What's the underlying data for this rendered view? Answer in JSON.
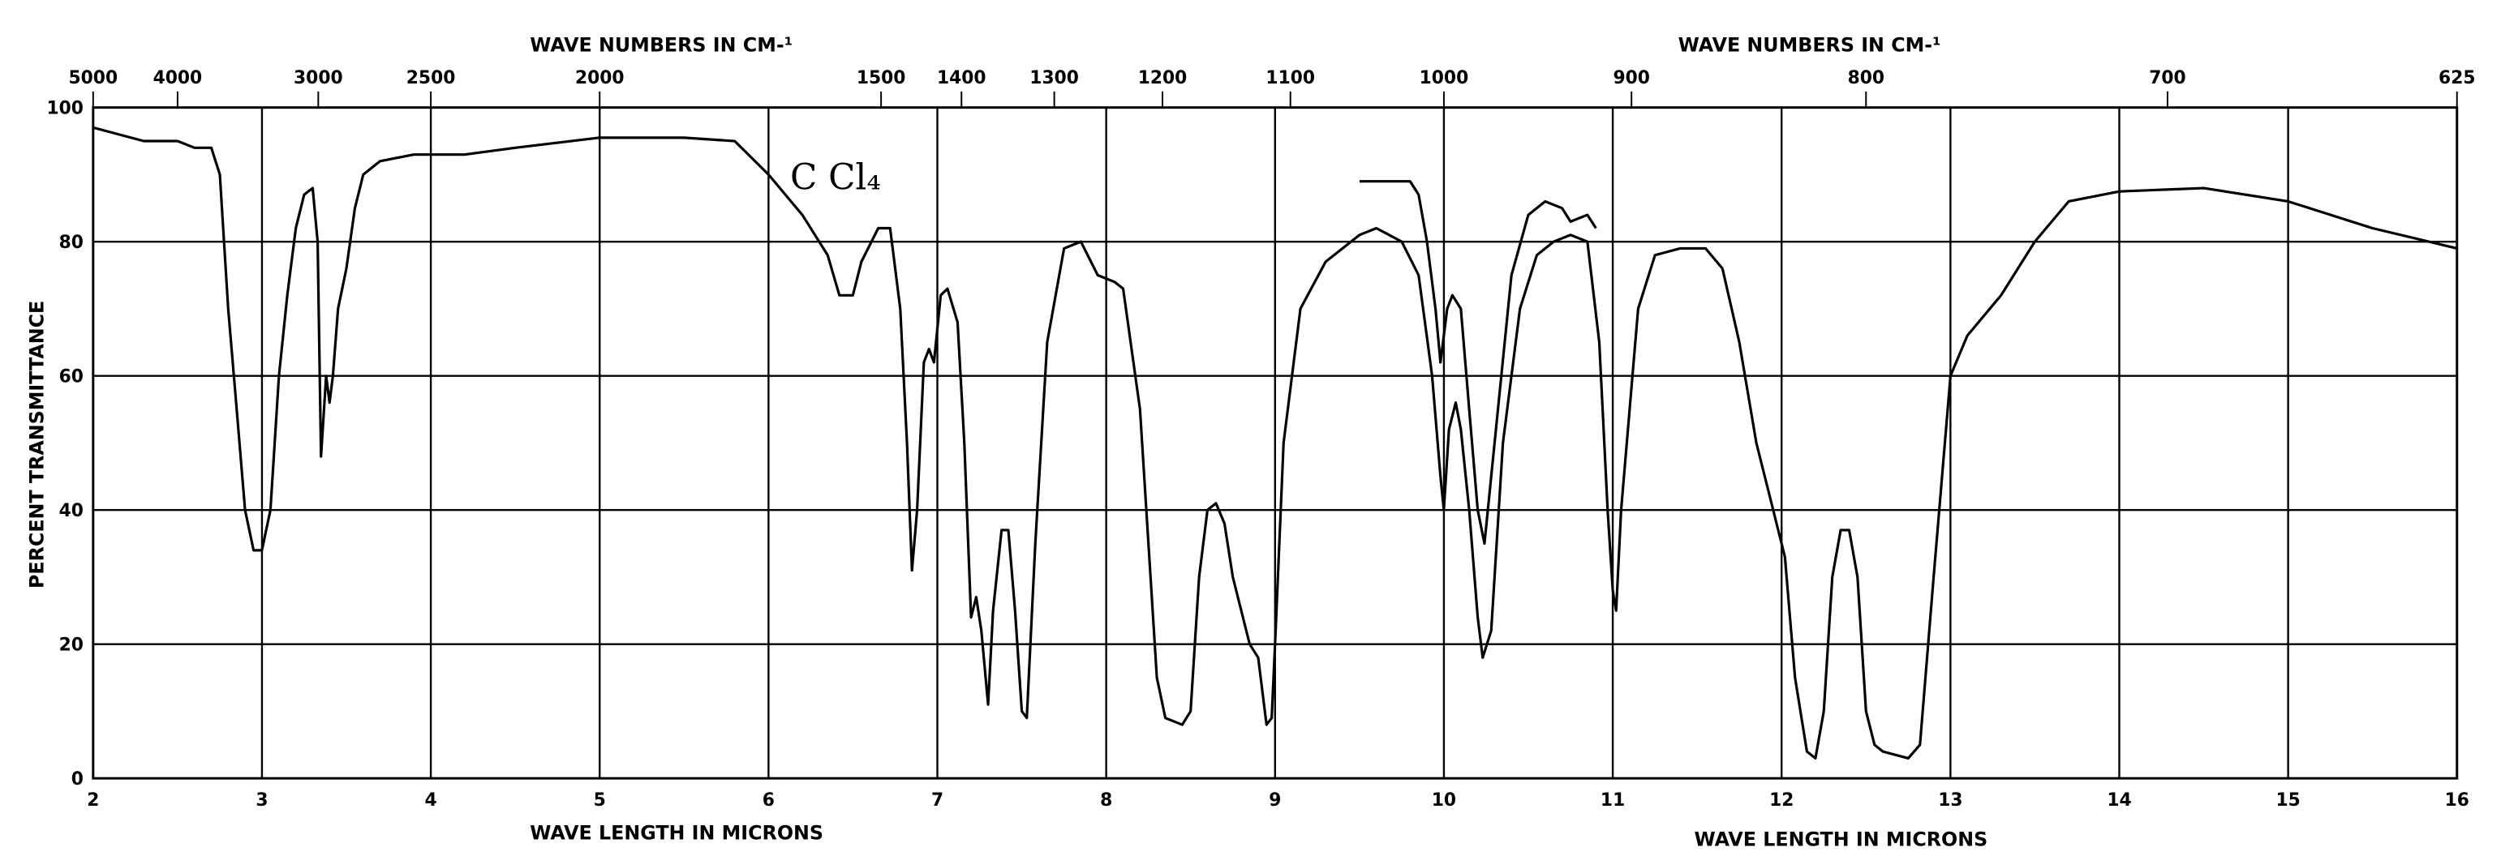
{
  "chart_data": {
    "type": "line",
    "annotation": "C Cl₄",
    "ylabel": "PERCENT TRANSMITTANCE",
    "xlabels": [
      "WAVE LENGTH IN MICRONS",
      "WAVE LENGTH IN MICRONS"
    ],
    "x2labels": [
      "WAVE NUMBERS IN CM-¹",
      "WAVE NUMBERS IN CM-¹"
    ],
    "xlim": [
      2,
      16
    ],
    "ylim": [
      0,
      100
    ],
    "xticks": [
      2,
      3,
      4,
      5,
      6,
      7,
      8,
      9,
      10,
      11,
      12,
      13,
      14,
      15,
      16
    ],
    "yticks": [
      0,
      20,
      40,
      60,
      80,
      100
    ],
    "x2ticks": [
      5000,
      4000,
      3000,
      2500,
      2000,
      1500,
      1400,
      1300,
      1200,
      1100,
      1000,
      900,
      800,
      700,
      625
    ],
    "grid": true,
    "series": [
      {
        "color": "#000000",
        "x": [
          2.0,
          2.3,
          2.5,
          2.6,
          2.7,
          2.75,
          2.8,
          2.85,
          2.9,
          2.95,
          3.0,
          3.05,
          3.1,
          3.15,
          3.2,
          3.25,
          3.3,
          3.33,
          3.35,
          3.38,
          3.4,
          3.42,
          3.45,
          3.5,
          3.55,
          3.6,
          3.7,
          3.9,
          4.2,
          4.5,
          5.0,
          5.5,
          5.8,
          6.0,
          6.2,
          6.35,
          6.42,
          6.5,
          6.55,
          6.65,
          6.72,
          6.78,
          6.82,
          6.85,
          6.88,
          6.92,
          6.95,
          6.98,
          7.02,
          7.06,
          7.12,
          7.16,
          7.2,
          7.23,
          7.26,
          7.3,
          7.33,
          7.38,
          7.42,
          7.46,
          7.5,
          7.53,
          7.58,
          7.65,
          7.75,
          7.85,
          7.95,
          8.05,
          8.1,
          8.2,
          8.3,
          8.35,
          8.45,
          8.5,
          8.55,
          8.6,
          8.65,
          8.7,
          8.75,
          8.85,
          8.9,
          8.95,
          8.98,
          9.0,
          9.05,
          9.15,
          9.3,
          9.5,
          9.6,
          9.75,
          9.85,
          9.93,
          9.98,
          10.0,
          10.03,
          10.07,
          10.1,
          10.15,
          10.2,
          10.23,
          10.28,
          10.35,
          10.45,
          10.55,
          10.65,
          10.75,
          10.85,
          10.92,
          10.97,
          11.0,
          11.02,
          11.05,
          11.15,
          11.25,
          11.4,
          11.55,
          11.65,
          11.75,
          11.85,
          11.95,
          12.02,
          12.08,
          12.15,
          12.2,
          12.25,
          12.3,
          12.35,
          12.4,
          12.45,
          12.5,
          12.55,
          12.6,
          12.75,
          12.82,
          12.9,
          13.0,
          13.1,
          13.3,
          13.5,
          13.7,
          14.0,
          14.5,
          15.0,
          15.5,
          16.0
        ],
        "values": [
          97,
          95,
          95,
          94,
          94,
          90,
          70,
          55,
          40,
          34,
          34,
          40,
          60,
          72,
          82,
          87,
          88,
          80,
          48,
          60,
          56,
          60,
          70,
          76,
          85,
          90,
          92,
          93,
          93,
          94,
          95.5,
          95.5,
          95,
          90,
          84,
          78,
          72,
          72,
          77,
          82,
          82,
          70,
          50,
          31,
          40,
          62,
          64,
          62,
          72,
          73,
          68,
          50,
          24,
          27,
          22,
          11,
          25,
          37,
          37,
          25,
          10,
          9,
          35,
          65,
          79,
          80,
          75,
          74,
          73,
          55,
          15,
          9,
          8,
          10,
          30,
          40,
          41,
          38,
          30,
          20,
          18,
          8,
          9,
          20,
          50,
          70,
          77,
          81,
          82,
          80,
          75,
          60,
          45,
          40,
          52,
          56,
          52,
          40,
          24,
          18,
          22,
          50,
          70,
          78,
          80,
          81,
          80,
          65,
          40,
          28,
          25,
          40,
          70,
          78,
          79,
          79,
          76,
          65,
          50,
          40,
          33,
          15,
          4,
          3,
          10,
          30,
          37,
          37,
          30,
          10,
          5,
          4,
          3,
          5,
          30,
          60,
          66,
          72,
          80,
          86,
          87.5,
          88,
          86,
          82,
          79
        ]
      },
      {
        "color": "#000000",
        "x": [
          9.5,
          9.8,
          9.85,
          9.9,
          9.95,
          9.98,
          10.02,
          10.05,
          10.1,
          10.15,
          10.2,
          10.24,
          10.3,
          10.4,
          10.5,
          10.6,
          10.7,
          10.75,
          10.85,
          10.9
        ],
        "values": [
          89,
          89,
          87,
          80,
          70,
          62,
          70,
          72,
          70,
          55,
          40,
          35,
          50,
          75,
          84,
          86,
          85,
          83,
          84,
          82
        ]
      }
    ]
  }
}
